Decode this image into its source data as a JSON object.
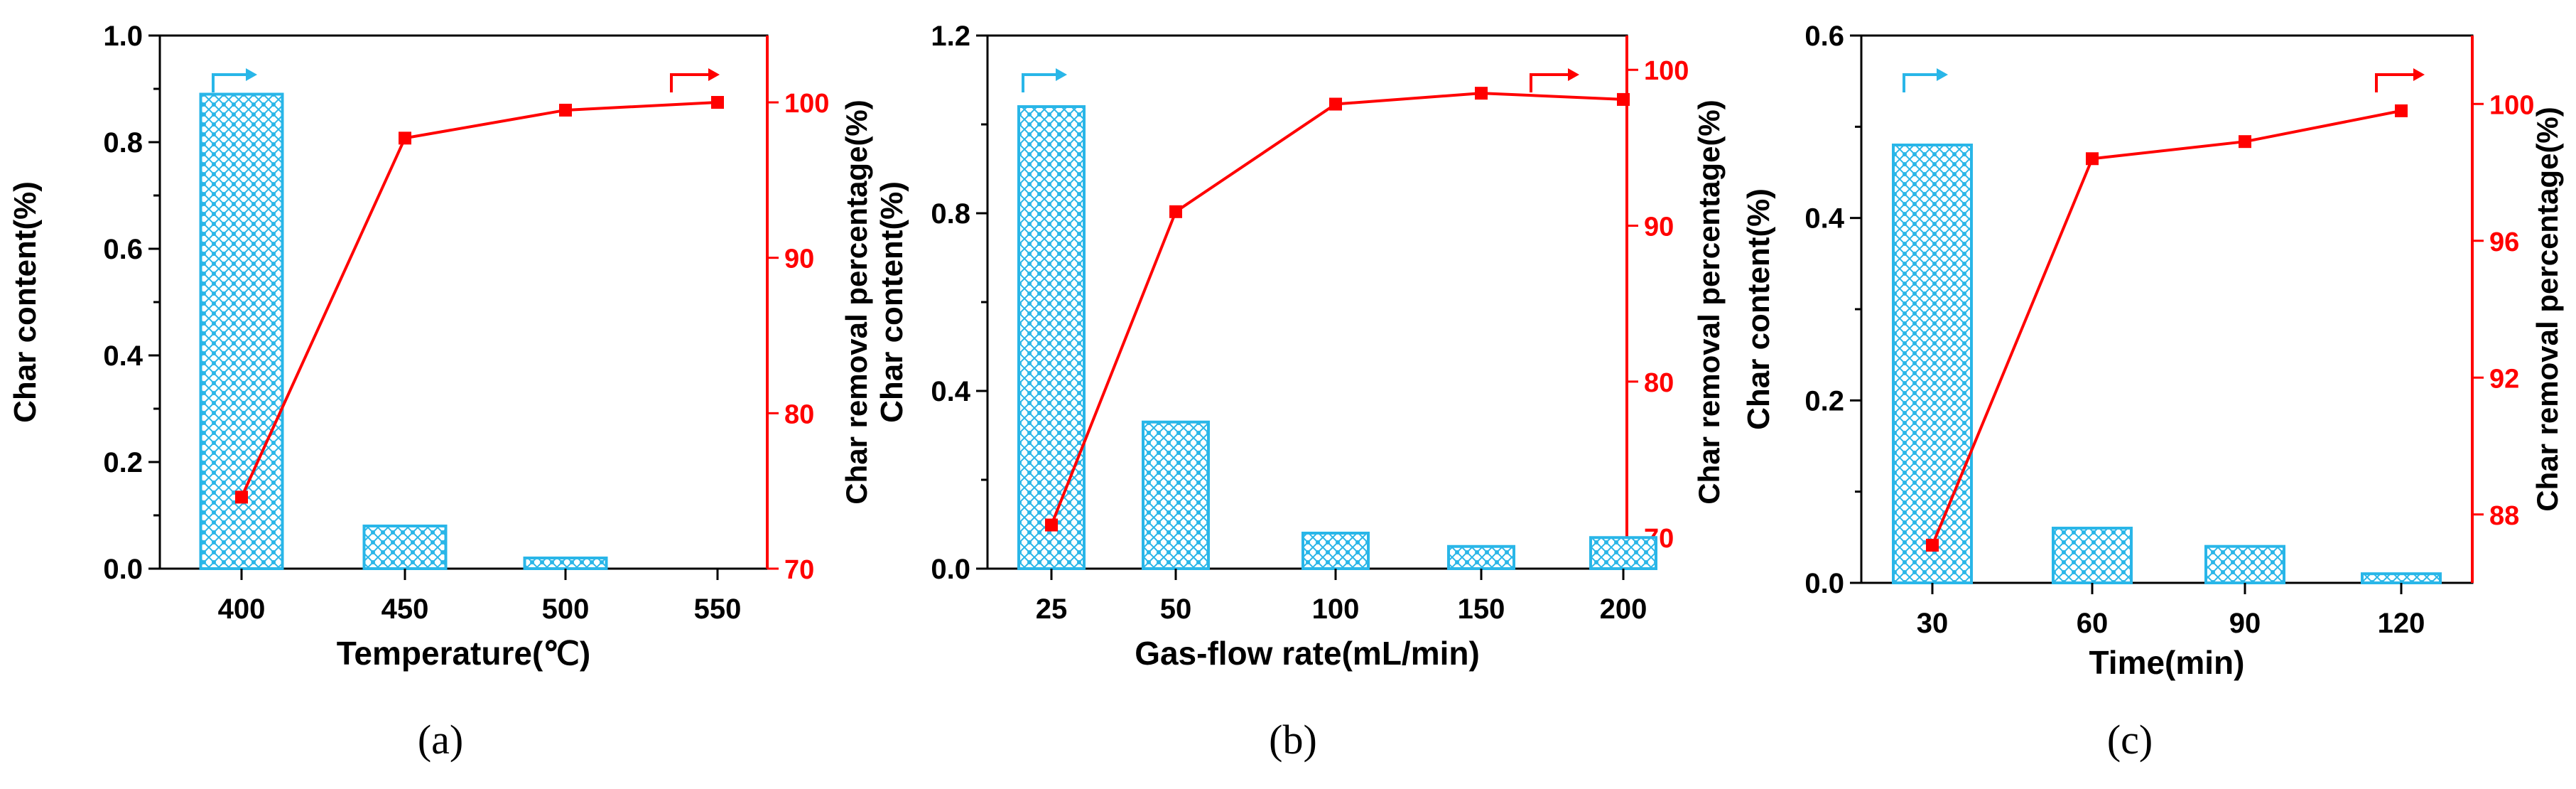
{
  "colors": {
    "bar": "#29b6e8",
    "line": "#ff0000",
    "axis": "#000000",
    "bar_pattern": "crosshatch-dots"
  },
  "chart_data": [
    {
      "type": "bar",
      "panel_label": "(a)",
      "xlabel": "Temperature(℃)",
      "ylabel": "Char content(%)",
      "y2label": "Char removal percentage(%)",
      "categories": [
        "400",
        "450",
        "500",
        "550"
      ],
      "series": [
        {
          "axis": "left",
          "type": "bar",
          "values": [
            0.89,
            0.08,
            0.02,
            null
          ]
        },
        {
          "axis": "right",
          "type": "line",
          "values": [
            74.6,
            97.7,
            99.5,
            100.0
          ]
        }
      ],
      "ylim": [
        0,
        1.0
      ],
      "yticks": [
        "0.0",
        "0.2",
        "0.4",
        "0.6",
        "0.8",
        "1.0"
      ],
      "y2lim": [
        70,
        104.3
      ],
      "y2ticks": [
        "70",
        "80",
        "90",
        "100"
      ]
    },
    {
      "type": "bar",
      "panel_label": "(b)",
      "xlabel": "Gas-flow rate(mL/min)",
      "ylabel": "Char content(%)",
      "y2label": "Char removal percentage(%)",
      "categories": [
        "25",
        "50",
        "100",
        "150",
        "200"
      ],
      "series": [
        {
          "axis": "left",
          "type": "bar",
          "values": [
            1.04,
            0.33,
            0.08,
            0.05,
            0.07
          ]
        },
        {
          "axis": "right",
          "type": "line",
          "values": [
            70.8,
            90.9,
            97.8,
            98.5,
            98.1
          ]
        }
      ],
      "ylim": [
        0,
        1.2
      ],
      "yticks": [
        "0.0",
        "0.4",
        "0.8",
        "1.2"
      ],
      "y2lim": [
        68,
        102.2
      ],
      "y2ticks": [
        "70",
        "80",
        "90",
        "100"
      ]
    },
    {
      "type": "bar",
      "panel_label": "(c)",
      "xlabel": "Time(min)",
      "ylabel": "Char content(%)",
      "y2label": "Char removal percentage(%)",
      "categories": [
        "30",
        "60",
        "90",
        "120"
      ],
      "series": [
        {
          "axis": "left",
          "type": "bar",
          "values": [
            0.48,
            0.06,
            0.04,
            0.01
          ]
        },
        {
          "axis": "right",
          "type": "line",
          "values": [
            87.1,
            98.4,
            98.9,
            99.8
          ]
        }
      ],
      "ylim": [
        0,
        0.6
      ],
      "yticks": [
        "0.0",
        "0.2",
        "0.4",
        "0.6"
      ],
      "y2lim": [
        86,
        102
      ],
      "y2ticks": [
        "88",
        "92",
        "96",
        "100"
      ]
    }
  ]
}
